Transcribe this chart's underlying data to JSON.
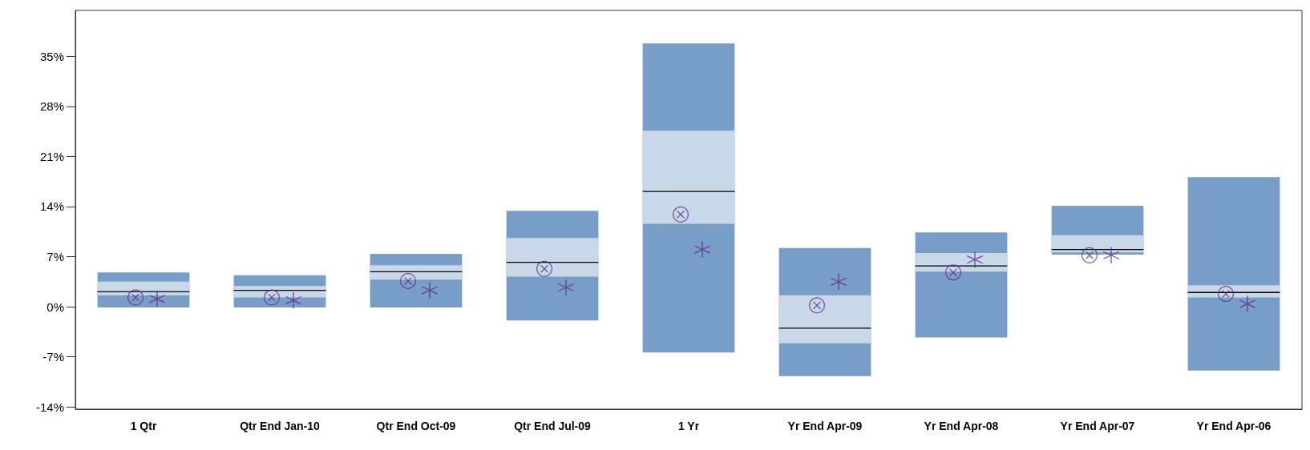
{
  "chart_data": {
    "type": "box",
    "categories": [
      "1 Qtr",
      "Qtr End Jan-10",
      "Qtr End Oct-09",
      "Qtr End Jul-09",
      "1 Yr",
      "Yr End Apr-09",
      "Yr End Apr-08",
      "Yr End Apr-07",
      "Yr End Apr-06"
    ],
    "ylim": [
      -14.3,
      41.4
    ],
    "yticks": [
      {
        "value": -14,
        "label": "-14%"
      },
      {
        "value": -7,
        "label": "-7%"
      },
      {
        "value": 0,
        "label": "0%"
      },
      {
        "value": 7,
        "label": "7%"
      },
      {
        "value": 14,
        "label": "14%"
      },
      {
        "value": 21,
        "label": "21%"
      },
      {
        "value": 28,
        "label": "28%"
      },
      {
        "value": 35,
        "label": "35%"
      }
    ],
    "series": [
      {
        "color": "#c9d8e9",
        "boxes": [
          {
            "low": -0.1,
            "q1": 1.6,
            "median": 2.1,
            "q3": 3.5,
            "high": 4.8
          },
          {
            "low": -0.1,
            "q1": 1.3,
            "median": 2.3,
            "q3": 2.9,
            "high": 4.4
          },
          {
            "low": -0.1,
            "q1": 3.8,
            "median": 4.9,
            "q3": 5.8,
            "high": 7.4
          },
          {
            "low": -1.9,
            "q1": 4.2,
            "median": 6.2,
            "q3": 9.6,
            "high": 13.4
          },
          {
            "low": -6.4,
            "q1": 11.6,
            "median": 16.1,
            "q3": 24.6,
            "high": 36.8
          },
          {
            "low": -9.7,
            "q1": -5.1,
            "median": -3.0,
            "q3": 1.6,
            "high": 8.2
          },
          {
            "low": -4.3,
            "q1": 4.9,
            "median": 5.7,
            "q3": 7.5,
            "high": 10.4
          },
          {
            "low": 7.3,
            "q1": 7.6,
            "median": 8.0,
            "q3": 10.0,
            "high": 14.1
          },
          {
            "low": -8.9,
            "q1": 1.3,
            "median": 2.0,
            "q3": 3.0,
            "high": 18.1
          }
        ]
      },
      {
        "type": "scatter",
        "marker": "circle",
        "color": "#5b2a8c",
        "x": [
          "1 Qtr",
          "Qtr End Jan-10",
          "Qtr End Oct-09",
          "Qtr End Jul-09",
          "1 Yr",
          "Yr End Apr-09",
          "Yr End Apr-08",
          "Yr End Apr-07",
          "Yr End Apr-06"
        ],
        "values": [
          1.3,
          1.3,
          3.6,
          5.3,
          12.9,
          0.2,
          4.8,
          7.2,
          1.8
        ]
      },
      {
        "type": "scatter",
        "marker": "star",
        "color": "#5b2a8c",
        "x": [
          "1 Qtr",
          "Qtr End Jan-10",
          "Qtr End Oct-09",
          "Qtr End Jul-09",
          "1 Yr",
          "Yr End Apr-09",
          "Yr End Apr-08",
          "Yr End Apr-07",
          "Yr End Apr-06"
        ],
        "values": [
          1.1,
          0.9,
          2.3,
          2.7,
          8.0,
          3.5,
          6.6,
          7.2,
          0.4
        ]
      }
    ]
  }
}
